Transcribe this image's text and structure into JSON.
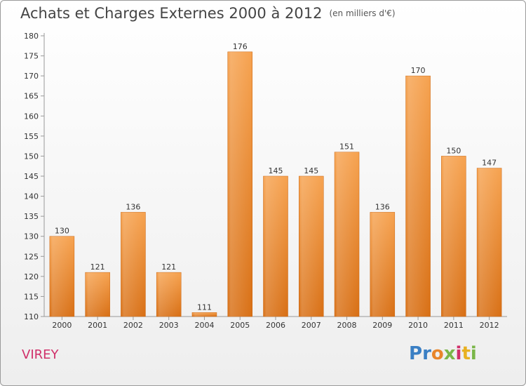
{
  "header": {
    "title": "Achats et Charges Externes 2000 à 2012",
    "subtitle": "(en milliers d'€)"
  },
  "commune": "VIREY",
  "brand": {
    "name": "Proxiti",
    "letters": [
      {
        "ch": "P",
        "color": "#3a7fc4"
      },
      {
        "ch": "r",
        "color": "#3a7fc4"
      },
      {
        "ch": "o",
        "color": "#e8852a"
      },
      {
        "ch": "x",
        "color": "#7ab648"
      },
      {
        "ch": "i",
        "color": "#d0306a"
      },
      {
        "ch": "t",
        "color": "#e8b020"
      },
      {
        "ch": "i",
        "color": "#7ab648"
      }
    ]
  },
  "chart_data": {
    "type": "bar",
    "categories": [
      "2000",
      "2001",
      "2002",
      "2003",
      "2004",
      "2005",
      "2006",
      "2007",
      "2008",
      "2009",
      "2010",
      "2011",
      "2012"
    ],
    "values": [
      130,
      121,
      136,
      121,
      111,
      176,
      145,
      145,
      151,
      136,
      170,
      150,
      147
    ],
    "ylim": [
      110,
      180
    ],
    "yticks": [
      110,
      115,
      120,
      125,
      130,
      135,
      140,
      145,
      150,
      155,
      160,
      165,
      170,
      175,
      180
    ],
    "grid": false,
    "bar_color_top": "#f6a24f",
    "bar_color_bottom": "#d86f14"
  }
}
